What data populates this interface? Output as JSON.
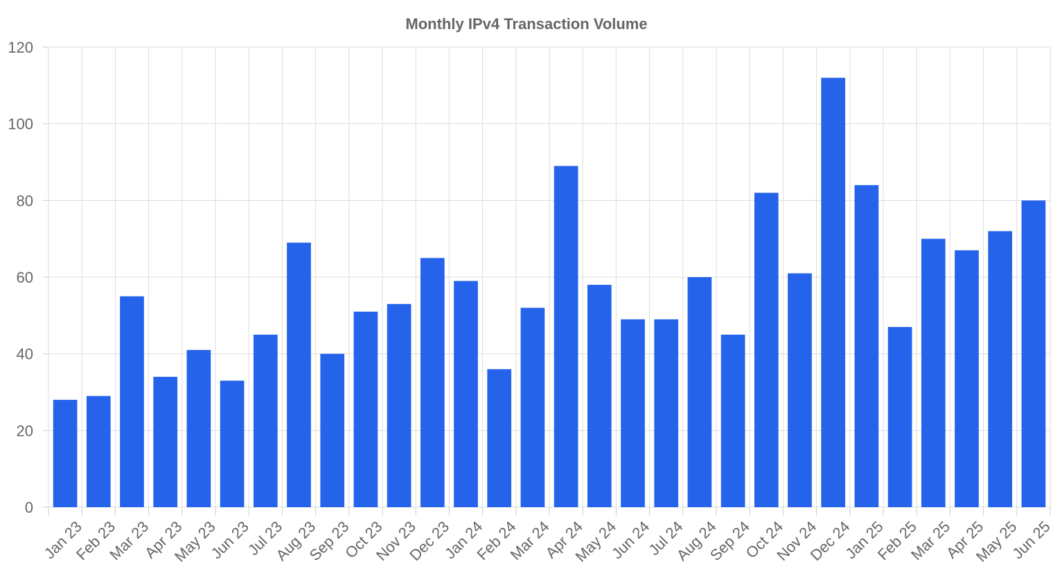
{
  "chart_data": {
    "type": "bar",
    "title": "Monthly IPv4 Transaction Volume",
    "xlabel": "",
    "ylabel": "",
    "ylim": [
      0,
      120
    ],
    "yticks": [
      0,
      20,
      40,
      60,
      80,
      100,
      120
    ],
    "grid": true,
    "legend": "none",
    "bar_color": "#2563eb",
    "categories": [
      "Jan 23",
      "Feb 23",
      "Mar 23",
      "Apr 23",
      "May 23",
      "Jun 23",
      "Jul 23",
      "Aug 23",
      "Sep 23",
      "Oct 23",
      "Nov 23",
      "Dec 23",
      "Jan 24",
      "Feb 24",
      "Mar 24",
      "Apr 24",
      "May 24",
      "Jun 24",
      "Jul 24",
      "Aug 24",
      "Sep 24",
      "Oct 24",
      "Nov 24",
      "Dec 24",
      "Jan 25",
      "Feb 25",
      "Mar 25",
      "Apr 25",
      "May 25",
      "Jun 25"
    ],
    "values": [
      28,
      29,
      55,
      34,
      41,
      33,
      45,
      69,
      40,
      51,
      53,
      65,
      59,
      36,
      52,
      89,
      58,
      49,
      49,
      60,
      45,
      82,
      61,
      112,
      84,
      47,
      70,
      67,
      72,
      80
    ]
  }
}
